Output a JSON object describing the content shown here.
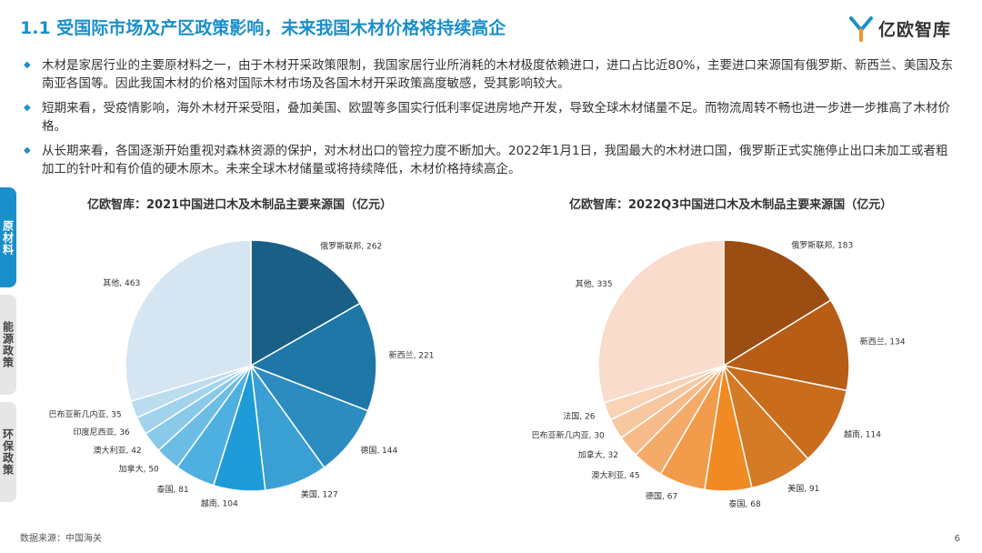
{
  "title": "1.1 受国际市场及产区政策影响，未来我国木材价格将持续高企",
  "logo": {
    "text": "亿欧智库"
  },
  "bullets": [
    "木材是家居行业的主要原材料之一，由于木材开采政策限制，我国家居行业所消耗的木材极度依赖进口，进口占比近80%，主要进口来源国有俄罗斯、新西兰、美国及东南亚各国等。因此我国木材的价格对国际木材市场及各国木材开采政策高度敏感，受其影响较大。",
    "短期来看，受疫情影响，海外木材开采受阻，叠加美国、欧盟等多国实行低利率促进房地产开发，导致全球木材储量不足。而物流周转不畅也进一步进一步推高了木材价格。",
    "从长期来看，各国逐渐开始重视对森林资源的保护，对木材出口的管控力度不断加大。2022年1月1日，我国最大的木材进口国，俄罗斯正式实施停止出口未加工或者粗加工的针叶和有价值的硬木原木。未来全球木材储量或将持续降低，木材价格持续高企。"
  ],
  "side_tabs": [
    "原材料",
    "能源政策",
    "环保政策"
  ],
  "chart_data": [
    {
      "type": "pie",
      "title": "亿欧智库：2021中国进口木及木制品主要来源国（亿元）",
      "categories": [
        "俄罗斯联邦",
        "新西兰",
        "德国",
        "美国",
        "越南",
        "泰国",
        "加拿大",
        "澳大利亚",
        "印度尼西亚",
        "巴布亚新几内亚",
        "其他"
      ],
      "values": [
        262,
        221,
        144,
        127,
        104,
        81,
        50,
        42,
        36,
        35,
        463
      ],
      "colors": [
        "#1a5f86",
        "#1f77a8",
        "#2d8cbf",
        "#3a9fd2",
        "#1f9bd8",
        "#4eb0e0",
        "#6cbde6",
        "#89c9e9",
        "#a3d3ec",
        "#bcdcef",
        "#d6e5f2"
      ]
    },
    {
      "type": "pie",
      "title": "亿欧智库：2022Q3中国进口木及木制品主要来源国（亿元）",
      "categories": [
        "俄罗斯联邦",
        "新西兰",
        "越南",
        "美国",
        "泰国",
        "德国",
        "澳大利亚",
        "加拿大",
        "巴布亚新几内亚",
        "法国",
        "其他"
      ],
      "values": [
        183,
        134,
        114,
        91,
        68,
        67,
        45,
        32,
        30,
        26,
        335
      ],
      "colors": [
        "#9c4d12",
        "#b85d16",
        "#c96c1c",
        "#d57a25",
        "#f08a22",
        "#f29b4b",
        "#f4ab6a",
        "#f6bb88",
        "#f7c8a0",
        "#f8d3b4",
        "#f9dccb"
      ]
    }
  ],
  "source": "数据来源：中国海关",
  "page_number": "6"
}
